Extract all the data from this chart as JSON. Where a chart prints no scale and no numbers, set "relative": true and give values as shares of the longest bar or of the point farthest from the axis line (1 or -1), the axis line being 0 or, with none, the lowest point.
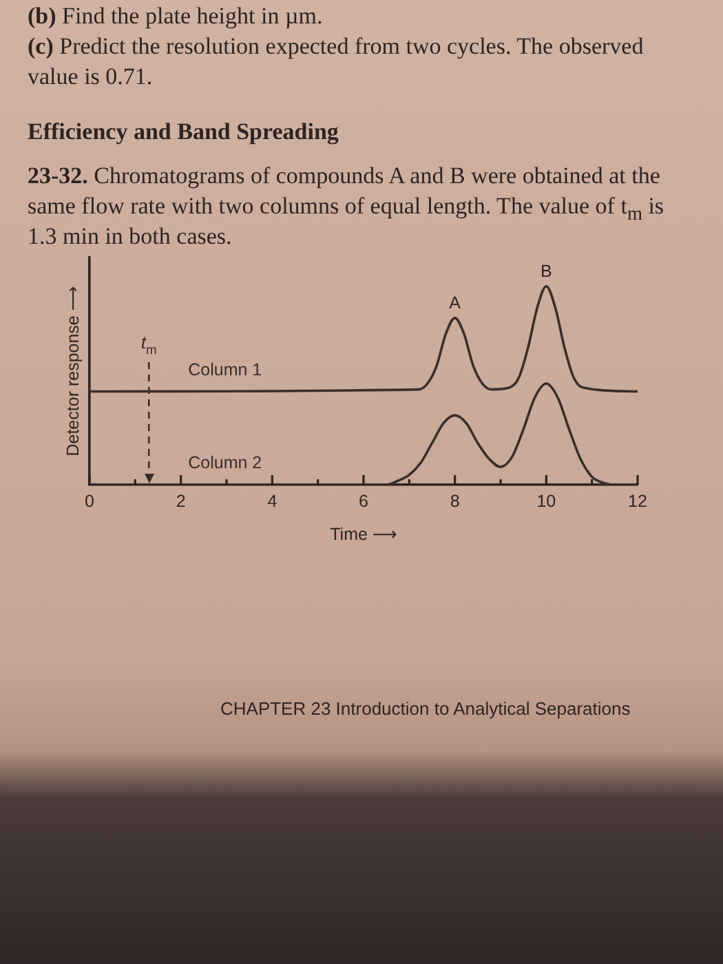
{
  "chart_data": {
    "type": "line",
    "relative": true,
    "title": "Efficiency and Band Spreading",
    "subtitle": "23-32. Chromatograms of compounds A and B were obtained at the same flow rate with two columns of equal length. The value of t$_{m}$ is 1.3 min in both cases.",
    "xlabel": "Time ⟶",
    "ylabel": "Detector response ⟶",
    "xlim": [
      0,
      12
    ],
    "xticks": [
      0,
      {
        "value": 1,
        "label": null
      },
      2,
      {
        "value": 3,
        "label": null
      },
      4,
      {
        "value": 5,
        "label": null
      },
      6,
      {
        "value": 7,
        "label": null
      },
      8,
      {
        "value": 9,
        "label": null
      },
      10,
      {
        "value": 11,
        "label": null
      },
      12
    ],
    "tick_labels": "x",
    "marker": "none",
    "series": [
      {
        "name": "Column 1",
        "color": "#3a2e2b",
        "x": [
          0,
          7.2,
          7.4,
          7.6,
          7.8,
          8,
          8.2,
          8.4,
          8.6,
          8.8,
          9.2,
          9.4,
          9.6,
          9.8,
          10,
          10.2,
          10.4,
          10.6,
          10.8,
          12
        ],
        "values": [
          0.47,
          0.48,
          0.51,
          0.6,
          0.76,
          0.84,
          0.76,
          0.6,
          0.51,
          0.48,
          0.49,
          0.54,
          0.69,
          0.89,
          1,
          0.89,
          0.69,
          0.54,
          0.49,
          0.47
        ]
      },
      {
        "name": "Column 2",
        "color": "#3a2e2b",
        "x": [
          0,
          6.5,
          6.75,
          7,
          7.25,
          7.5,
          7.75,
          8,
          8.25,
          8.5,
          8.75,
          9,
          9.25,
          9.5,
          9.75,
          10,
          10.25,
          10.5,
          10.75,
          11,
          11.25,
          11.5,
          12
        ],
        "values": [
          0,
          0,
          0.02,
          0.05,
          0.11,
          0.21,
          0.31,
          0.35,
          0.31,
          0.21,
          0.13,
          0.09,
          0.14,
          0.28,
          0.44,
          0.51,
          0.44,
          0.28,
          0.13,
          0.04,
          0.01,
          0,
          0
        ]
      }
    ],
    "ref_lines": [
      {
        "axis": "x",
        "value": 1.3,
        "label": "t$_{m}$",
        "line_style": "dashed",
        "color": "#3a2e2b"
      }
    ],
    "annotations": [
      "(b) Find the plate height in µm.",
      "(c) Predict the resolution expected from two cycles. The observed value is 0.71.",
      {
        "text": "A",
        "x": 8,
        "y": 0.84
      },
      {
        "text": "B",
        "x": 10,
        "y": 1
      },
      "CHAPTER 23 Introduction to Analytical Separations"
    ]
  }
}
